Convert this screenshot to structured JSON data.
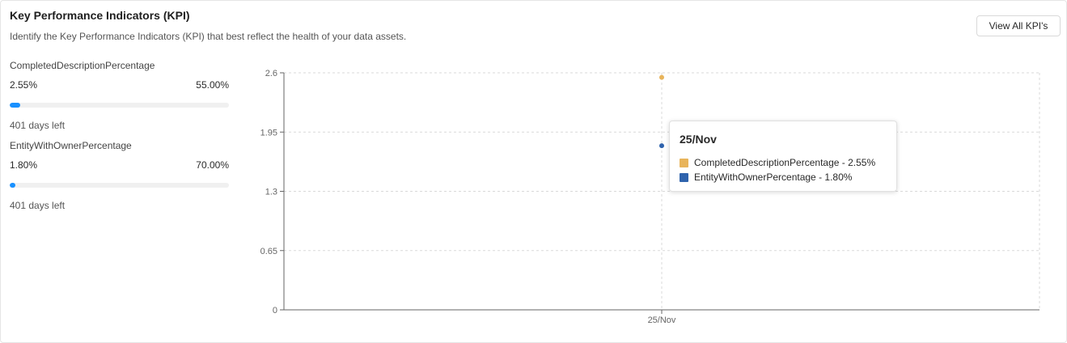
{
  "header": {
    "title": "Key Performance Indicators (KPI)",
    "subtitle": "Identify the Key Performance Indicators (KPI) that best reflect the health of your data assets.",
    "view_all_label": "View All KPI's"
  },
  "kpis": [
    {
      "name": "CompletedDescriptionPercentage",
      "current": "2.55%",
      "target": "55.00%",
      "progress_fraction": 0.0464,
      "days_left": "401 days left"
    },
    {
      "name": "EntityWithOwnerPercentage",
      "current": "1.80%",
      "target": "70.00%",
      "progress_fraction": 0.0257,
      "days_left": "401 days left"
    }
  ],
  "colors": {
    "progress": "#1890ff",
    "series_description": "#e8b45b",
    "series_owner": "#2f63ad",
    "grid": "#d9d9d9",
    "axis": "#666666"
  },
  "tooltip": {
    "title": "25/Nov",
    "rows": [
      {
        "label": "CompletedDescriptionPercentage - 2.55%",
        "color": "#e8b45b"
      },
      {
        "label": "EntityWithOwnerPercentage - 1.80%",
        "color": "#2f63ad"
      }
    ]
  },
  "chart_data": {
    "type": "scatter",
    "categories": [
      "25/Nov"
    ],
    "series": [
      {
        "name": "CompletedDescriptionPercentage",
        "values": [
          2.55
        ],
        "color": "#e8b45b"
      },
      {
        "name": "EntityWithOwnerPercentage",
        "values": [
          1.8
        ],
        "color": "#2f63ad"
      }
    ],
    "yticks": [
      "0",
      "0.65",
      "1.3",
      "1.95",
      "2.6"
    ],
    "ylim": [
      0,
      2.6
    ],
    "grid": true,
    "title": "",
    "xlabel": "",
    "ylabel": ""
  }
}
